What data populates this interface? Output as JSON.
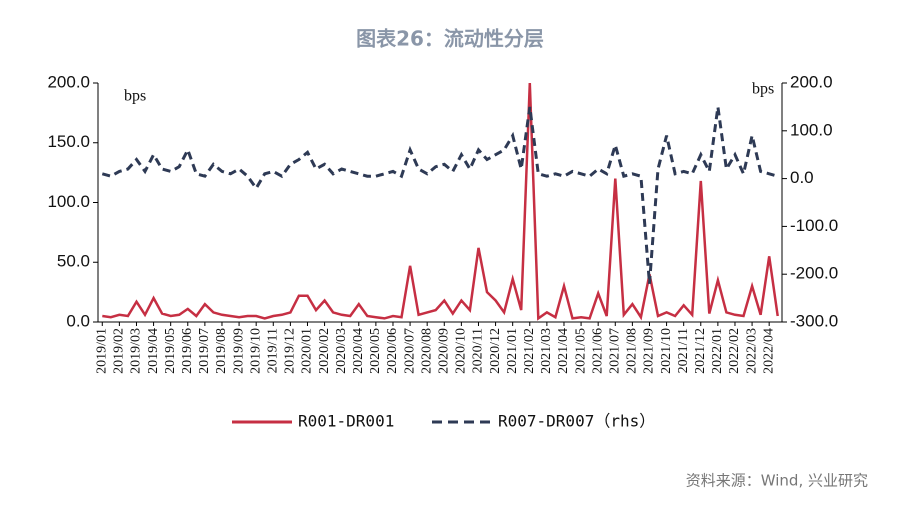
{
  "chart_data": {
    "type": "line",
    "title": "图表26：流动性分层",
    "y_label": "bps",
    "y2_label": "bps",
    "source": "资料来源：Wind, 兴业研究",
    "categories": [
      "2019/01",
      null,
      "2019/02",
      null,
      "2019/03",
      null,
      "2019/04",
      null,
      "2019/05",
      null,
      "2019/06",
      null,
      "2019/07",
      null,
      "2019/08",
      null,
      "2019/09",
      null,
      "2019/10",
      null,
      "2019/11",
      null,
      "2019/12",
      null,
      "2020/01",
      null,
      "2020/02",
      null,
      "2020/03",
      null,
      "2020/04",
      null,
      "2020/05",
      null,
      "2020/06",
      null,
      "2020/07",
      null,
      "2020/08",
      null,
      "2020/09",
      null,
      "2020/10",
      null,
      "2020/11",
      null,
      "2020/12",
      null,
      "2021/01",
      null,
      "2021/02",
      null,
      "2021/03",
      null,
      "2021/04",
      null,
      "2021/05",
      null,
      "2021/06",
      null,
      "2021/07",
      null,
      "2021/08",
      null,
      "2021/09",
      null,
      "2021/10",
      null,
      "2021/11",
      null,
      "2021/12",
      null,
      "2022/01",
      null,
      "2022/02",
      null,
      "2022/03",
      null,
      "2022/04",
      null
    ],
    "series": [
      {
        "name": "R001-DR001",
        "color": "#c62f43",
        "values": [
          5,
          4,
          6,
          5,
          17,
          6,
          20,
          7,
          5,
          6,
          11,
          5,
          15,
          8,
          6,
          5,
          4,
          5,
          5,
          3,
          5,
          6,
          8,
          22,
          22,
          10,
          18,
          8,
          6,
          5,
          15,
          5,
          4,
          3,
          5,
          4,
          47,
          6,
          8,
          10,
          18,
          7,
          18,
          10,
          62,
          25,
          18,
          8,
          36,
          10,
          200,
          3,
          8,
          4,
          30,
          3,
          4,
          3,
          24,
          5,
          120,
          6,
          15,
          4,
          40,
          5,
          8,
          5,
          14,
          6,
          118,
          7,
          35,
          8,
          6,
          5,
          30,
          6,
          55,
          5
        ]
      },
      {
        "name": "R007-DR007（rhs）",
        "color": "#2e3a55",
        "axis": "y2",
        "dashed": true,
        "values": [
          10,
          5,
          15,
          20,
          40,
          15,
          50,
          20,
          15,
          25,
          60,
          10,
          5,
          30,
          15,
          10,
          20,
          5,
          -20,
          10,
          15,
          5,
          30,
          40,
          55,
          20,
          30,
          10,
          20,
          15,
          10,
          5,
          5,
          10,
          15,
          5,
          60,
          20,
          10,
          25,
          30,
          15,
          50,
          20,
          60,
          40,
          50,
          60,
          90,
          20,
          150,
          10,
          5,
          10,
          5,
          15,
          10,
          5,
          20,
          10,
          70,
          5,
          10,
          5,
          -220,
          20,
          90,
          10,
          15,
          10,
          50,
          15,
          150,
          20,
          50,
          10,
          90,
          15,
          10,
          5
        ]
      }
    ],
    "ylim": [
      0,
      200
    ],
    "yticks": [
      {
        "value": 0,
        "label": "0.0"
      },
      {
        "value": 50,
        "label": "50.0"
      },
      {
        "value": 100,
        "label": "100.0"
      },
      {
        "value": 150,
        "label": "150.0"
      },
      {
        "value": 200,
        "label": "200.0"
      }
    ],
    "y2lim": [
      -300,
      200
    ],
    "y2ticks": [
      {
        "value": -300,
        "label": "-300.0"
      },
      {
        "value": -200,
        "label": "-200.0"
      },
      {
        "value": -100,
        "label": "-100.0"
      },
      {
        "value": 0,
        "label": "0.0"
      },
      {
        "value": 100,
        "label": "100.0"
      },
      {
        "value": 200,
        "label": "200.0"
      }
    ],
    "legend": "bottom"
  }
}
